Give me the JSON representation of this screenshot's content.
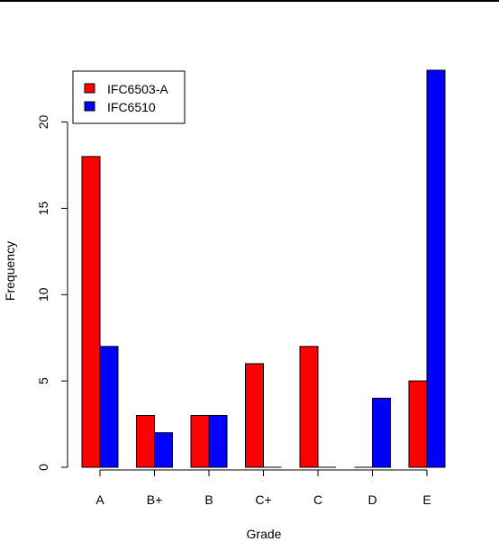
{
  "chart_data": {
    "type": "bar",
    "xlabel": "Grade",
    "ylabel": "Frequency",
    "categories": [
      "A",
      "B+",
      "B",
      "C+",
      "C",
      "D",
      "E"
    ],
    "series": [
      {
        "name": "IFC6503-A",
        "color": "#ff0000",
        "values": [
          18,
          3,
          3,
          6,
          7,
          0,
          5
        ]
      },
      {
        "name": "IFC6510",
        "color": "#0000ff",
        "values": [
          7,
          2,
          3,
          0,
          0,
          4,
          23
        ]
      }
    ],
    "ylim": [
      0,
      23
    ],
    "yticks": [
      0,
      5,
      10,
      15,
      20
    ],
    "grid": false,
    "legend_position": "top-left"
  }
}
